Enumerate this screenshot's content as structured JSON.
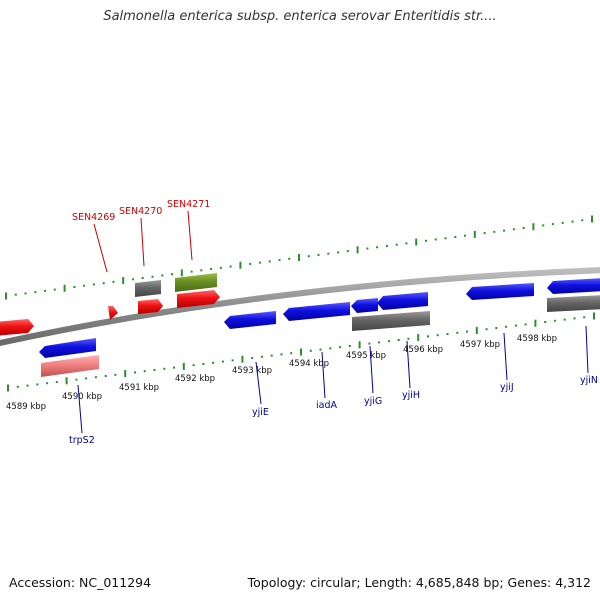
{
  "title": "Salmonella enterica subsp. enterica serovar Enteritidis str....",
  "footer": {
    "accession": "Accession: NC_011294",
    "summary": "Topology: circular; Length: 4,685,848 bp; Genes: 4,312"
  },
  "colors": {
    "backbone": "#8a8a8a",
    "tick": "#2e8b2e",
    "blue_gene": "#1010e0",
    "red_gene": "#ee1111",
    "pink_gene": "#f08080",
    "gray_gene": "#666666",
    "olive_gene": "#6b8e23",
    "blue_label": "#000099",
    "red_label": "#cc0000"
  },
  "scale_labels": [
    "4589 kbp",
    "4590 kbp",
    "4591 kbp",
    "4592 kbp",
    "4593 kbp",
    "4594 kbp",
    "4595 kbp",
    "4596 kbp",
    "4597 kbp",
    "4598 kbp"
  ],
  "gene_labels_top": [
    {
      "text": "SEN4269"
    },
    {
      "text": "SEN4270"
    },
    {
      "text": "SEN4271"
    }
  ],
  "gene_labels_bottom": [
    {
      "text": "trpS2"
    },
    {
      "text": "yjiE"
    },
    {
      "text": "iadA"
    },
    {
      "text": "yjiG"
    },
    {
      "text": "yjiH"
    },
    {
      "text": "yjiJ"
    },
    {
      "text": "yjiN"
    }
  ]
}
